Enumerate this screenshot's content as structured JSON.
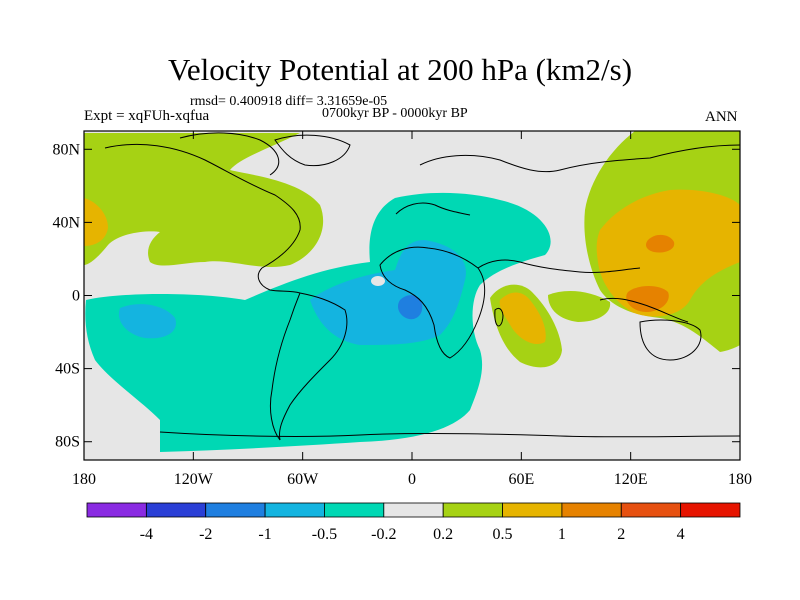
{
  "title": "Velocity Potential at 200 hPa (km2/s)",
  "stats": "rmsd= 0.400918 diff= 3.31659e-05",
  "experiment": "Expt = xqFUh-xqfua",
  "period": "0700kyr BP - 0000kyr BP",
  "season": "ANN",
  "axes": {
    "x_ticks": [
      {
        "lon": -180,
        "label": "180"
      },
      {
        "lon": -120,
        "label": "120W"
      },
      {
        "lon": -60,
        "label": "60W"
      },
      {
        "lon": 0,
        "label": "0"
      },
      {
        "lon": 60,
        "label": "60E"
      },
      {
        "lon": 120,
        "label": "120E"
      },
      {
        "lon": 180,
        "label": "180"
      }
    ],
    "y_ticks": [
      {
        "lat": 80,
        "label": "80N"
      },
      {
        "lat": 40,
        "label": "40N"
      },
      {
        "lat": 0,
        "label": "0"
      },
      {
        "lat": -40,
        "label": "40S"
      },
      {
        "lat": -80,
        "label": "80S"
      }
    ],
    "lon_range": [
      -180,
      180
    ],
    "lat_range": [
      -90,
      90
    ]
  },
  "colorbar": {
    "labels": [
      "-4",
      "-2",
      "-1",
      "-0.5",
      "-0.2",
      "0.2",
      "0.5",
      "1",
      "2",
      "4"
    ],
    "colors": [
      "#8a2be2",
      "#2a3fd6",
      "#1f7fe0",
      "#14b4e0",
      "#00d8b4",
      "#e6e6e6",
      "#a6d214",
      "#e6b400",
      "#e68200",
      "#e65010",
      "#e61400"
    ]
  },
  "field_colors": {
    "neutral": "#e6e6e6",
    "pos_weak": "#a6d214",
    "pos_mid": "#e6b400",
    "pos_strong": "#e68200",
    "pos_stronger": "#e65010",
    "neg_weak": "#00d8b4",
    "neg_mid": "#14b4e0",
    "neg_strong": "#1f7fe0"
  }
}
